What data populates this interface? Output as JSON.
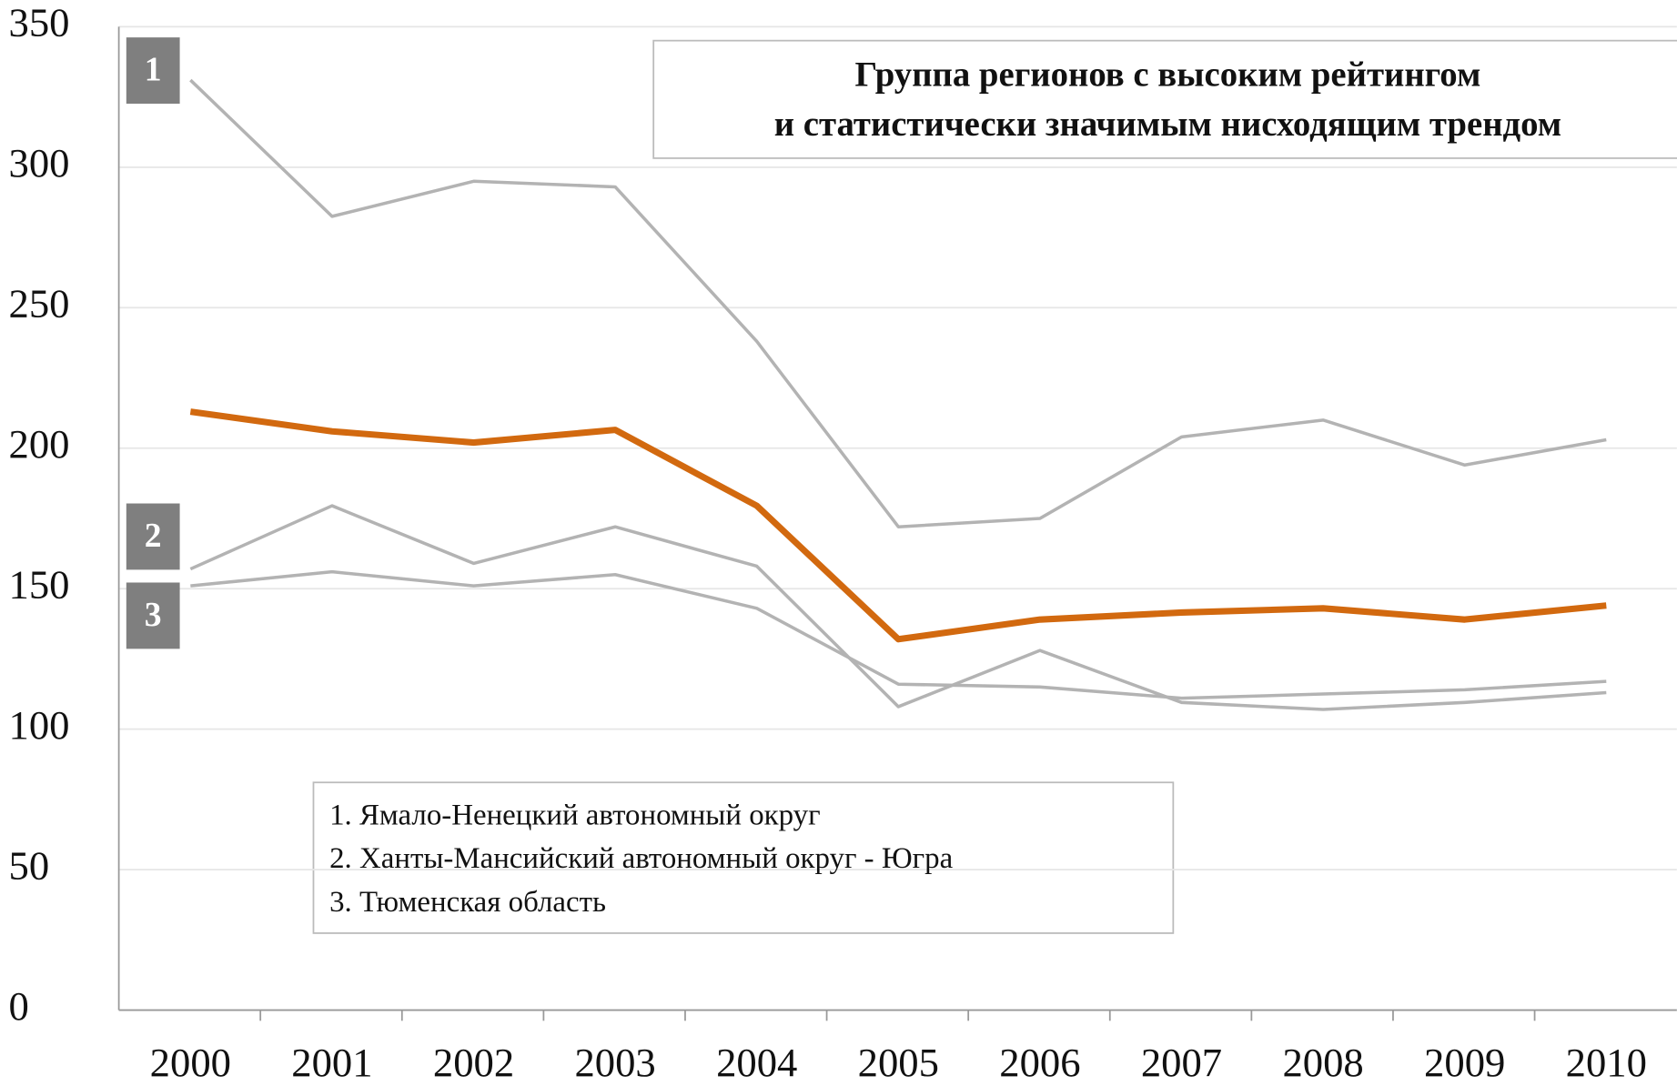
{
  "chart_data": {
    "type": "line",
    "title": [
      "Группа регионов с высоким рейтингом",
      "и статистически значимым нисходящим трендом"
    ],
    "categories": [
      "2000",
      "2001",
      "2002",
      "2003",
      "2004",
      "2005",
      "2006",
      "2007",
      "2008",
      "2009",
      "2010"
    ],
    "series_labels": [
      "1",
      "2",
      "3"
    ],
    "series": [
      {
        "name": "1. Ямало-Ненецкий  автономный округ",
        "color": "#b3b3b3",
        "values": [
          331,
          282.5,
          295,
          293,
          238,
          172,
          175,
          204,
          210,
          194,
          203
        ]
      },
      {
        "name": "2. Ханты-Мансийский автономный округ - Югра",
        "color": "#b3b3b3",
        "values": [
          157,
          179.5,
          159,
          172,
          158,
          108,
          128,
          109.5,
          107,
          109.5,
          113
        ]
      },
      {
        "name": "3. Тюменская область",
        "color": "#b3b3b3",
        "values": [
          151,
          156,
          151,
          155,
          143,
          116,
          115,
          111,
          112.5,
          114,
          117
        ]
      },
      {
        "color": "#d2690f",
        "values": [
          213,
          206,
          202,
          206.5,
          179.5,
          132,
          139,
          141.5,
          143,
          139,
          144
        ]
      }
    ],
    "ylim": [
      0,
      350
    ],
    "yticks": [
      0,
      50,
      100,
      150,
      200,
      250,
      300,
      350
    ],
    "grid": true
  }
}
